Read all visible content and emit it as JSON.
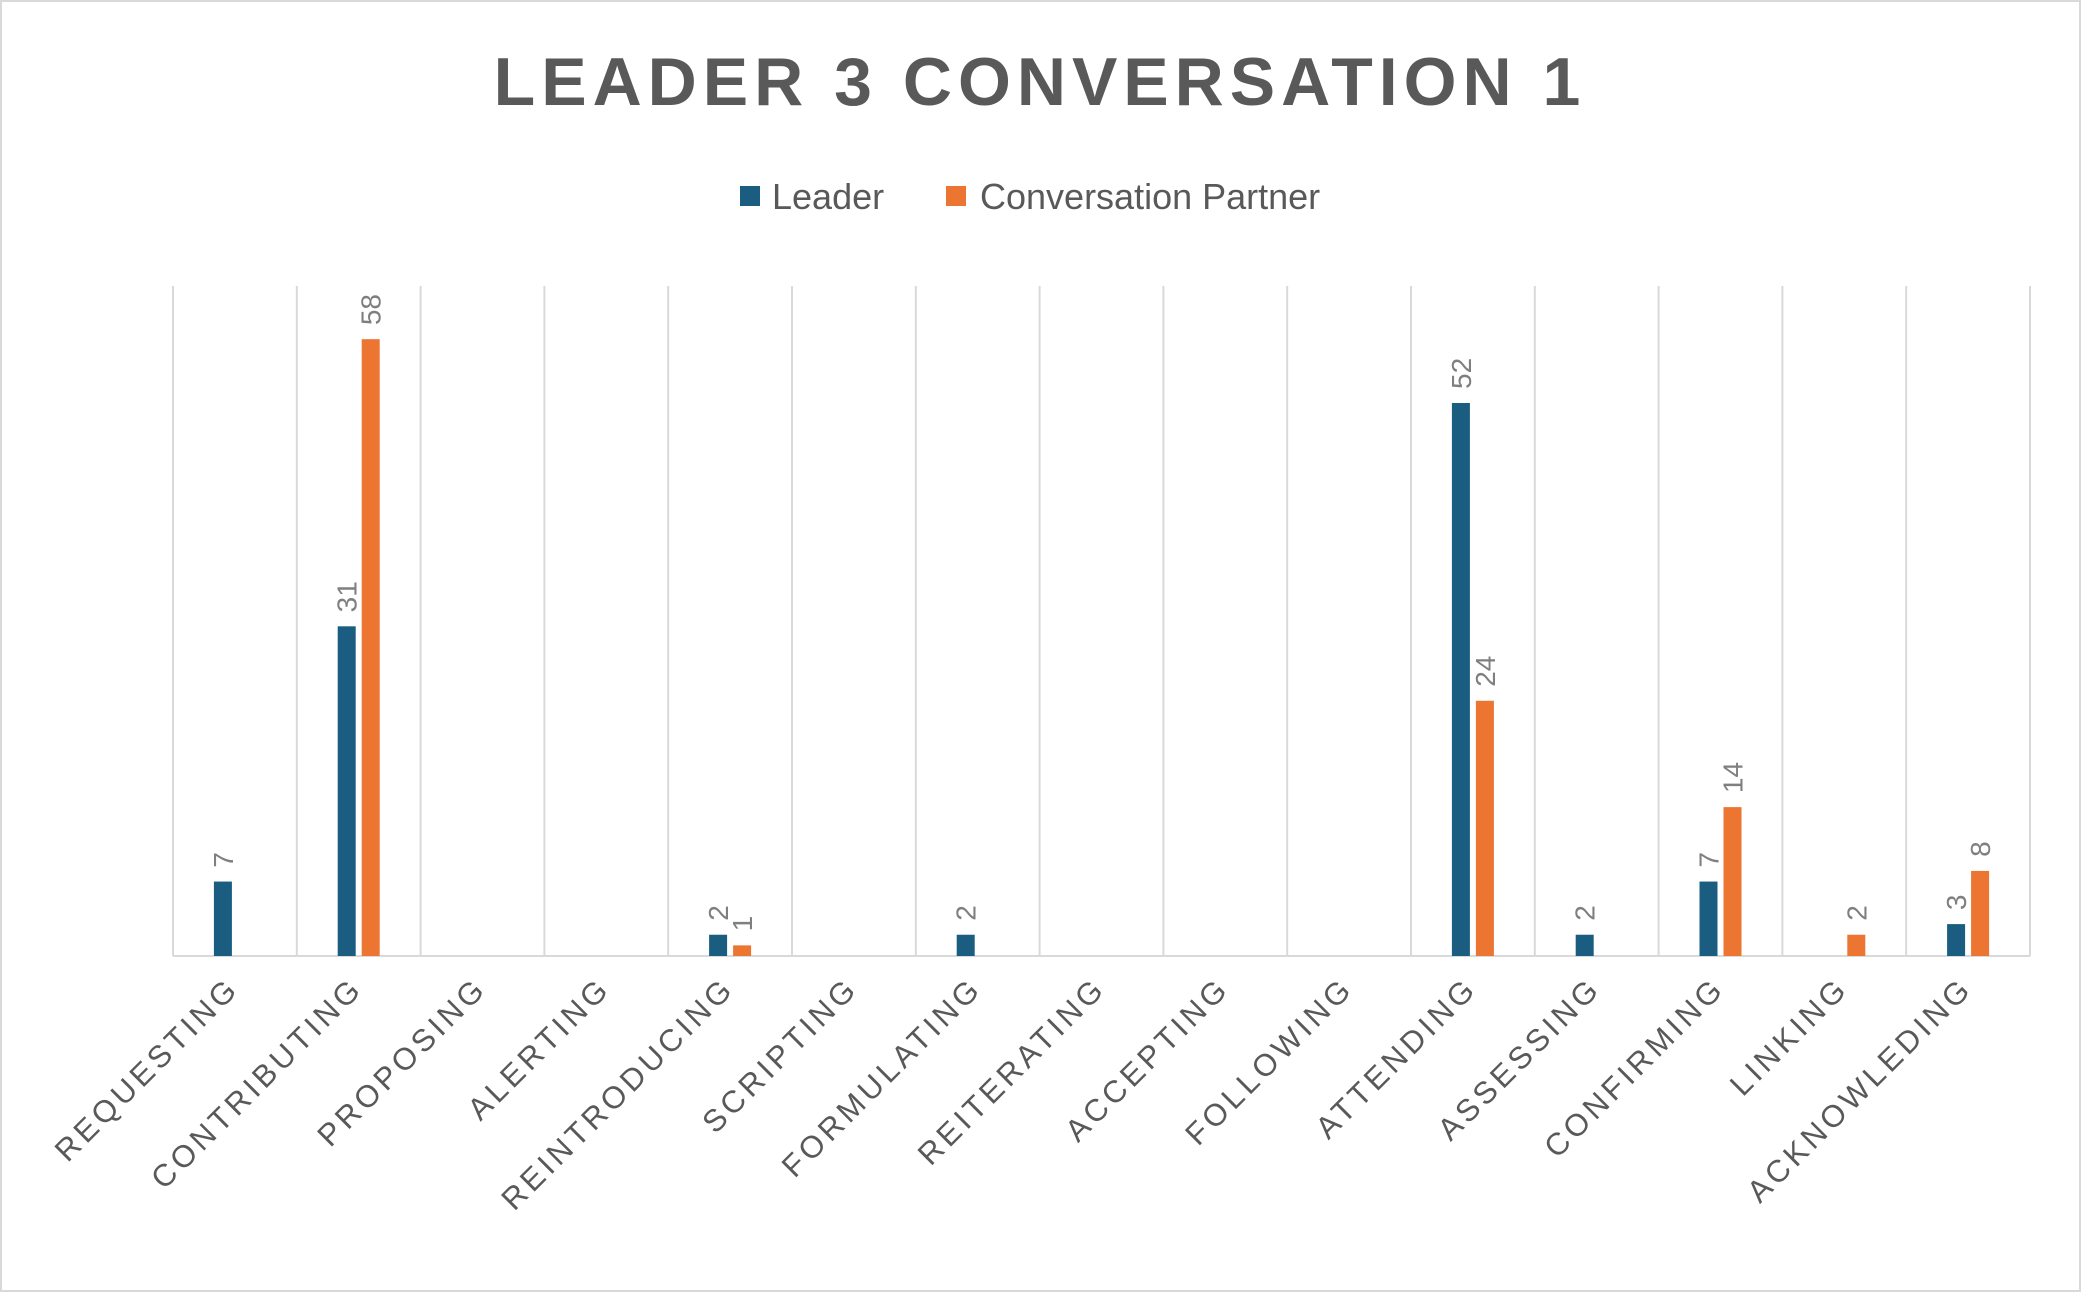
{
  "chart_data": {
    "type": "bar",
    "title": "LEADER 3 CONVERSATION 1",
    "legend_position": "top",
    "grid": "vertical category dividers",
    "categories": [
      "REQUESTING",
      "CONTRIBUTING",
      "PROPOSING",
      "ALERTING",
      "REINTRODUCING",
      "SCRIPTING",
      "FORMULATING",
      "REITERATING",
      "ACCEPTING",
      "FOLLOWING",
      "ATTENDING",
      "ASSESSING",
      "CONFIRMING",
      "LINKING",
      "ACKNOWLEDING"
    ],
    "ylim": [
      0,
      63
    ],
    "series": [
      {
        "name": "Leader",
        "color": "#1a5d80",
        "values": [
          7,
          31,
          null,
          null,
          2,
          null,
          2,
          null,
          null,
          null,
          52,
          2,
          7,
          null,
          3
        ]
      },
      {
        "name": "Conversation Partner",
        "color": "#ed7532",
        "values": [
          null,
          58,
          null,
          null,
          1,
          null,
          null,
          null,
          null,
          null,
          24,
          null,
          14,
          2,
          8
        ]
      }
    ]
  }
}
